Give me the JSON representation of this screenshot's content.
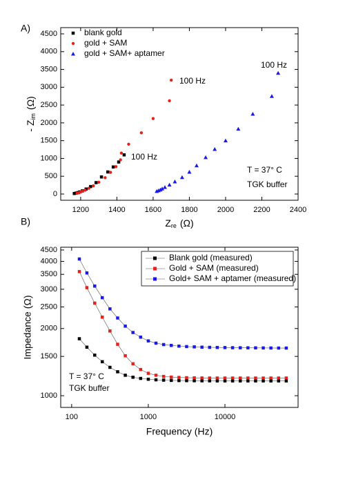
{
  "chart_data": [
    {
      "type": "scatter",
      "panel": "A)",
      "xlabel": {
        "text": "Z",
        "sub": "re",
        "unit": "(Ω)"
      },
      "ylabel": {
        "text": "- Z",
        "sub": "im",
        "unit": "(Ω)"
      },
      "xlim": [
        1090,
        2400
      ],
      "ylim": [
        -175,
        4675
      ],
      "xticks": [
        1200,
        1400,
        1600,
        1800,
        2000,
        2200,
        2400
      ],
      "yticks": [
        0,
        500,
        1000,
        1500,
        2000,
        2500,
        3000,
        3500,
        4000,
        4500
      ],
      "annotations": [
        "100 Hz",
        "100 Hz",
        "100 Hz",
        "T = 37° C",
        "TGK buffer"
      ],
      "legend": "upper left",
      "series": [
        {
          "name": "blank gold",
          "color": "#000000",
          "marker": "square",
          "x": [
            1165,
            1175,
            1185,
            1195,
            1210,
            1230,
            1255,
            1285,
            1315,
            1350,
            1380,
            1410,
            1440
          ],
          "values": [
            15,
            25,
            40,
            60,
            90,
            140,
            210,
            320,
            480,
            620,
            760,
            900,
            1100
          ]
        },
        {
          "name": "gold + SAM",
          "color": "#e8201a",
          "marker": "circle",
          "x": [
            1180,
            1190,
            1200,
            1210,
            1225,
            1245,
            1270,
            1300,
            1335,
            1365,
            1395,
            1420,
            1425,
            1465,
            1535,
            1600,
            1690,
            1700
          ],
          "values": [
            20,
            35,
            55,
            80,
            110,
            160,
            230,
            330,
            460,
            610,
            770,
            960,
            1150,
            1400,
            1720,
            2120,
            2620,
            3200
          ]
        },
        {
          "name": "gold + SAM+  aptamer",
          "color": "#1a1ae8",
          "marker": "triangle",
          "x": [
            1620,
            1630,
            1640,
            1650,
            1665,
            1690,
            1720,
            1760,
            1800,
            1840,
            1890,
            1940,
            2000,
            2070,
            2150,
            2255,
            2290
          ],
          "values": [
            80,
            100,
            120,
            150,
            190,
            260,
            350,
            470,
            620,
            800,
            1030,
            1260,
            1500,
            1830,
            2250,
            2750,
            3400
          ]
        }
      ]
    },
    {
      "type": "line",
      "panel": "B)",
      "xlog": true,
      "ylog": true,
      "xlabel": "Frequency (Hz)",
      "ylabel": "Impedance (Ω)",
      "xlim": [
        72,
        90000
      ],
      "ylim": [
        886,
        4630
      ],
      "xticks": [
        100,
        1000,
        10000
      ],
      "yticks": [
        1000,
        1500,
        2000,
        2500,
        3000,
        3500,
        4000,
        4500
      ],
      "annotations": [
        "T = 37° C",
        "TGK buffer"
      ],
      "legend": "upper right",
      "x": [
        126,
        158,
        200,
        251,
        316,
        398,
        501,
        631,
        794,
        1000,
        1259,
        1585,
        1995,
        2512,
        3162,
        3981,
        5012,
        6310,
        7943,
        10000,
        12589,
        15849,
        19953,
        25119,
        31623,
        39811,
        50119,
        63096
      ],
      "series": [
        {
          "name": "Blank gold (measured)",
          "color": "#000000",
          "marker": "square",
          "values": [
            1800,
            1650,
            1520,
            1420,
            1340,
            1280,
            1235,
            1210,
            1195,
            1185,
            1178,
            1174,
            1171,
            1169,
            1168,
            1167,
            1166,
            1166,
            1165,
            1165,
            1165,
            1165,
            1165,
            1165,
            1165,
            1165,
            1165,
            1165
          ]
        },
        {
          "name": "Gold + SAM (measured)",
          "color": "#e8201a",
          "marker": "square",
          "values": [
            3600,
            3050,
            2600,
            2250,
            1950,
            1700,
            1510,
            1390,
            1310,
            1260,
            1235,
            1220,
            1212,
            1207,
            1204,
            1202,
            1201,
            1200,
            1200,
            1200,
            1200,
            1200,
            1200,
            1200,
            1200,
            1200,
            1200,
            1200
          ]
        },
        {
          "name": "Gold+ SAM + aptamer (measured)",
          "color": "#1a1ae8",
          "marker": "square",
          "values": [
            4100,
            3550,
            3100,
            2750,
            2450,
            2230,
            2050,
            1920,
            1830,
            1760,
            1720,
            1695,
            1680,
            1668,
            1660,
            1655,
            1650,
            1647,
            1645,
            1643,
            1641,
            1640,
            1639,
            1638,
            1637,
            1636,
            1635,
            1635
          ]
        }
      ]
    }
  ]
}
